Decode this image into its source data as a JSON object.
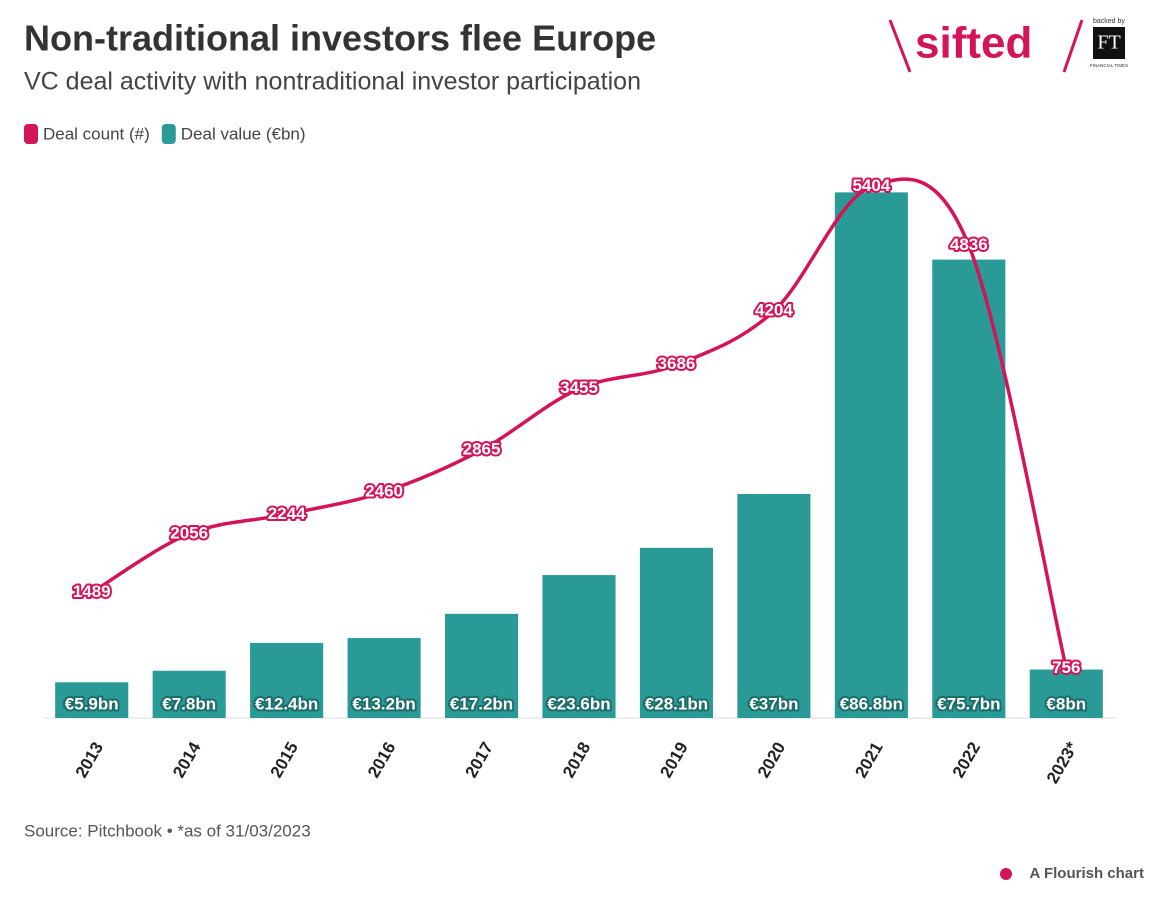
{
  "chart_data": {
    "type": "bar-line",
    "title": "Non-traditional investors flee Europe",
    "subtitle": "VC deal activity with nontraditional investor participation",
    "source": "Source: Pitchbook • *as of 31/03/2023",
    "logo": {
      "name": "sifted",
      "backed_by": "backed by",
      "ft": "FT",
      "ft_name": "FINANCIAL TIMES"
    },
    "credit": "A Flourish chart",
    "categories": [
      "2013",
      "2014",
      "2015",
      "2016",
      "2017",
      "2018",
      "2019",
      "2020",
      "2021",
      "2022",
      "2023*"
    ],
    "series": [
      {
        "name": "Deal count (#)",
        "color": "#d4145a",
        "type": "line",
        "axis": "y2",
        "values": [
          1489,
          2056,
          2244,
          2460,
          2865,
          3455,
          3686,
          4204,
          5404,
          4836,
          756
        ]
      },
      {
        "name": "Deal value (€bn)",
        "color": "#2a9a97",
        "type": "bar",
        "axis": "y",
        "values": [
          5.9,
          7.8,
          12.4,
          13.2,
          17.2,
          23.6,
          28.1,
          37,
          86.8,
          75.7,
          8
        ],
        "value_labels": [
          "€5.9bn",
          "€7.8bn",
          "€12.4bn",
          "€13.2bn",
          "€17.2bn",
          "€23.6bn",
          "€28.1bn",
          "€37bn",
          "€86.8bn",
          "€75.7bn",
          "€8bn"
        ]
      }
    ],
    "ylim": [
      0,
      90
    ],
    "y2lim": [
      280,
      5535
    ],
    "legend": "top-left",
    "grid": false
  }
}
